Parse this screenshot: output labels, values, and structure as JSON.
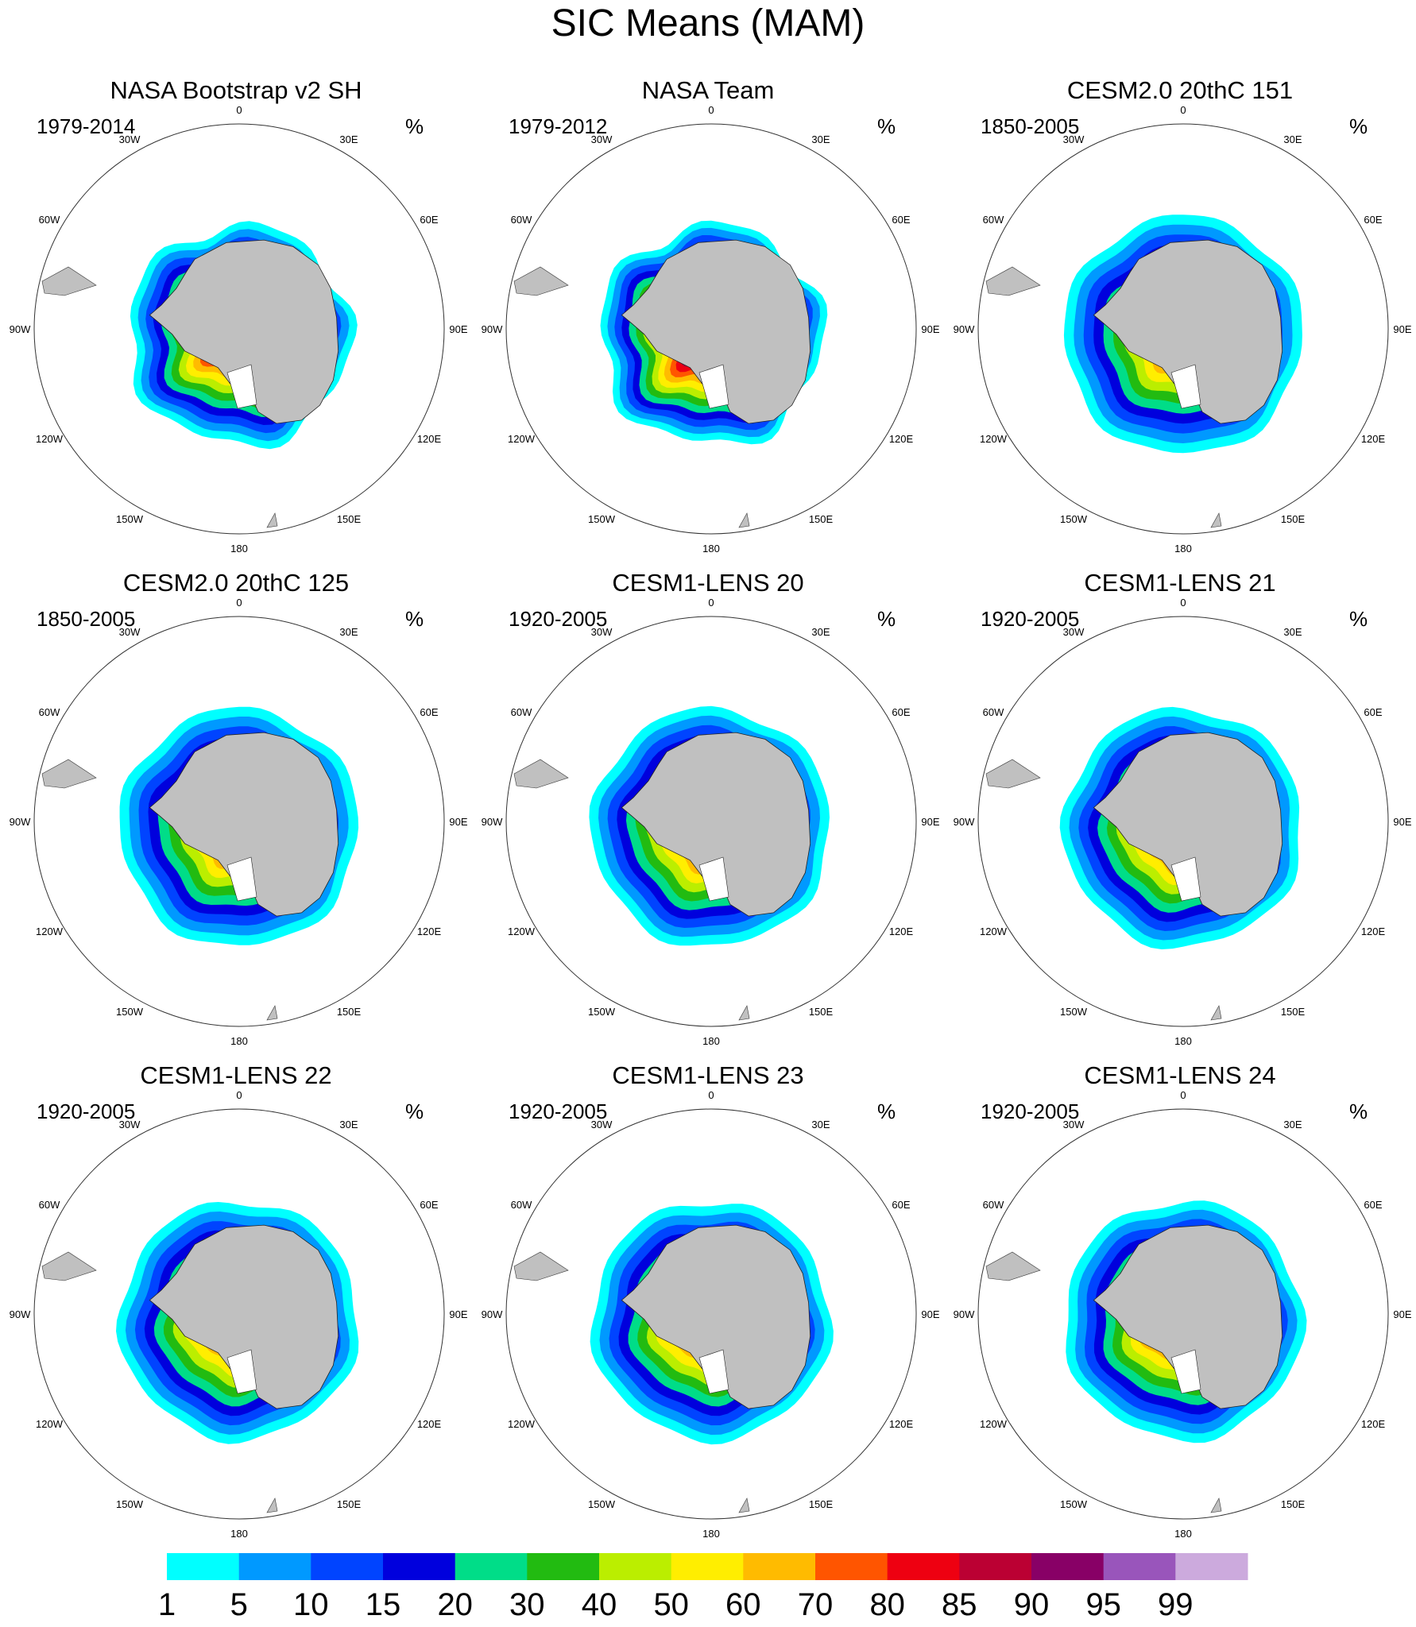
{
  "title": "SIC Means (MAM)",
  "units": "%",
  "longitude_labels": [
    "0",
    "30E",
    "60E",
    "90E",
    "120E",
    "150E",
    "180",
    "150W",
    "120W",
    "90W",
    "60W",
    "30W"
  ],
  "panels": [
    {
      "title": "NASA Bootstrap v2 SH",
      "years": "1979-2014"
    },
    {
      "title": "NASA Team",
      "years": "1979-2012"
    },
    {
      "title": "CESM2.0 20thC 151",
      "years": "1850-2005"
    },
    {
      "title": "CESM2.0 20thC 125",
      "years": "1850-2005"
    },
    {
      "title": "CESM1-LENS 20",
      "years": "1920-2005"
    },
    {
      "title": "CESM1-LENS 21",
      "years": "1920-2005"
    },
    {
      "title": "CESM1-LENS 22",
      "years": "1920-2005"
    },
    {
      "title": "CESM1-LENS 23",
      "years": "1920-2005"
    },
    {
      "title": "CESM1-LENS 24",
      "years": "1920-2005"
    }
  ],
  "colorbar": {
    "labels": [
      "1",
      "5",
      "10",
      "15",
      "20",
      "30",
      "40",
      "50",
      "60",
      "70",
      "80",
      "85",
      "90",
      "95",
      "99"
    ],
    "colors": [
      "#00ffff",
      "#0099ff",
      "#0044ff",
      "#0000dd",
      "#00dd88",
      "#22bb11",
      "#bbee00",
      "#ffee00",
      "#ffbb00",
      "#ff5500",
      "#ee0011",
      "#bb0033",
      "#880066",
      "#9955bb",
      "#ccaadd"
    ]
  }
}
